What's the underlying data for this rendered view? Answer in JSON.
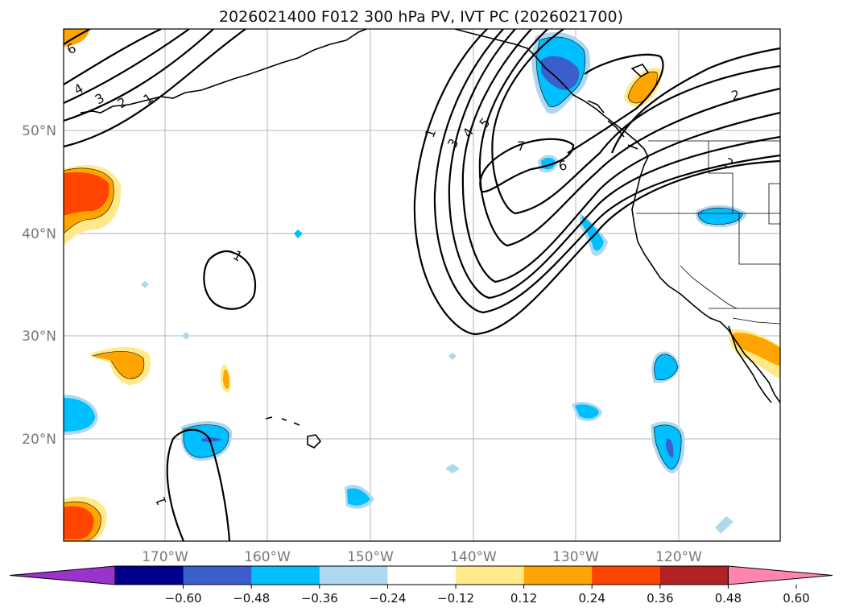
{
  "title": "2026021400 F012 300 hPa PV, IVT PC (2026021700)",
  "lat_labels": [
    "50°N",
    "40°N",
    "30°N",
    "20°N"
  ],
  "lon_labels": [
    "170°W",
    "160°W",
    "150°W",
    "140°W",
    "130°W",
    "120°W"
  ],
  "colorbar": {
    "ticks": [
      "−0.60",
      "−0.48",
      "−0.36",
      "−0.24",
      "−0.12",
      "0.12",
      "0.24",
      "0.36",
      "0.48",
      "0.60"
    ],
    "colors": [
      "#9933cc",
      "#00008b",
      "#3a5fcd",
      "#00bfff",
      "#add8f0",
      "#ffffff",
      "#ffe98a",
      "#ffa500",
      "#ff4500",
      "#b22222",
      "#ff85aa"
    ]
  },
  "contour_labels": [
    "6",
    "4",
    "3",
    "2",
    "1",
    "1",
    "3",
    "4",
    "5",
    "7",
    "6",
    "2",
    "2",
    "1",
    "1"
  ],
  "colors": {
    "contour": "#000000",
    "grid": "#b5b5b5",
    "axis_label": "#777777"
  }
}
